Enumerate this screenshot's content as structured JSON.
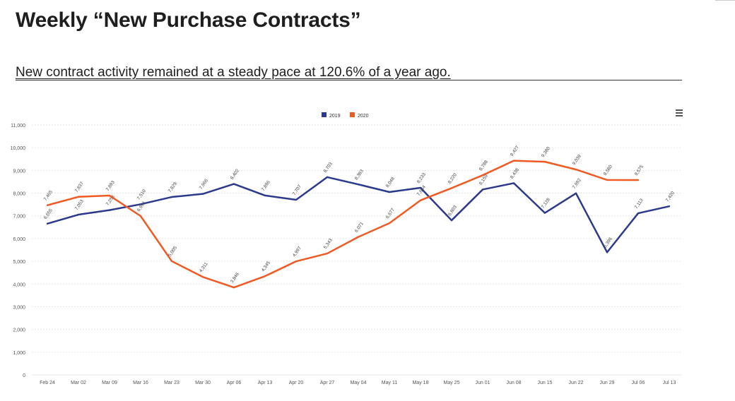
{
  "header": {
    "title": "Weekly “New Purchase Contracts”",
    "subtitle": "New contract activity remained at a steady pace at 120.6% of a year ago."
  },
  "colors": {
    "series_2019": "#2b3a8c",
    "series_2020": "#f05a22",
    "grid": "#e6e6e6",
    "text": "#555555"
  },
  "icons": {
    "menu": "hamburger-menu-icon"
  },
  "chart_data": {
    "type": "line",
    "title": "",
    "xlabel": "",
    "ylabel": "",
    "ylim": [
      0,
      11000
    ],
    "yticks": [
      "0",
      "1,000",
      "2,000",
      "3,000",
      "4,000",
      "5,000",
      "6,000",
      "7,000",
      "8,000",
      "9,000",
      "10,000",
      "11,000"
    ],
    "legend_position": "top-center",
    "grid": true,
    "categories": [
      "Feb 24",
      "Mar 02",
      "Mar 09",
      "Mar 16",
      "Mar 23",
      "Mar 30",
      "Apr 06",
      "Apr 13",
      "Apr 20",
      "Apr 27",
      "May 04",
      "May 11",
      "May 18",
      "May 25",
      "Jun 01",
      "Jun 08",
      "Jun 15",
      "Jun 22",
      "Jun 29",
      "Jul 06",
      "Jul 13"
    ],
    "series": [
      {
        "name": "2019",
        "color": "#2b3a8c",
        "values": [
          6655,
          7053,
          7253,
          7510,
          7829,
          7966,
          8402,
          7896,
          7707,
          8703,
          8383,
          8048,
          8233,
          6803,
          8159,
          8438,
          7128,
          7992,
          5396,
          7113,
          7420
        ],
        "labels": [
          "6,655",
          "7,053",
          "7,253",
          "7,510",
          "7,829",
          "7,966",
          "8,402",
          "7,896",
          "7,707",
          "8,703",
          "8,383",
          "8,048",
          "8,233",
          "6,803",
          "8,159",
          "8,438",
          "7,128",
          "7,992",
          "5,396",
          "7,113",
          "7,420"
        ]
      },
      {
        "name": "2020",
        "color": "#f05a22",
        "values": [
          7465,
          7837,
          7893,
          6991,
          5005,
          4311,
          3846,
          4345,
          4997,
          5343,
          6071,
          6677,
          7684,
          8220,
          8788,
          9427,
          9380,
          9039,
          8580,
          8575,
          null
        ],
        "labels": [
          "7,465",
          "7,837",
          "7,893",
          "6,991",
          "5,005",
          "4,311",
          "3,846",
          "4,345",
          "4,997",
          "5,343",
          "6,071",
          "6,677",
          "7,684",
          "8,220",
          "8,788",
          "9,427",
          "9,380",
          "9,039",
          "8,580",
          "8,575",
          null
        ]
      }
    ]
  }
}
